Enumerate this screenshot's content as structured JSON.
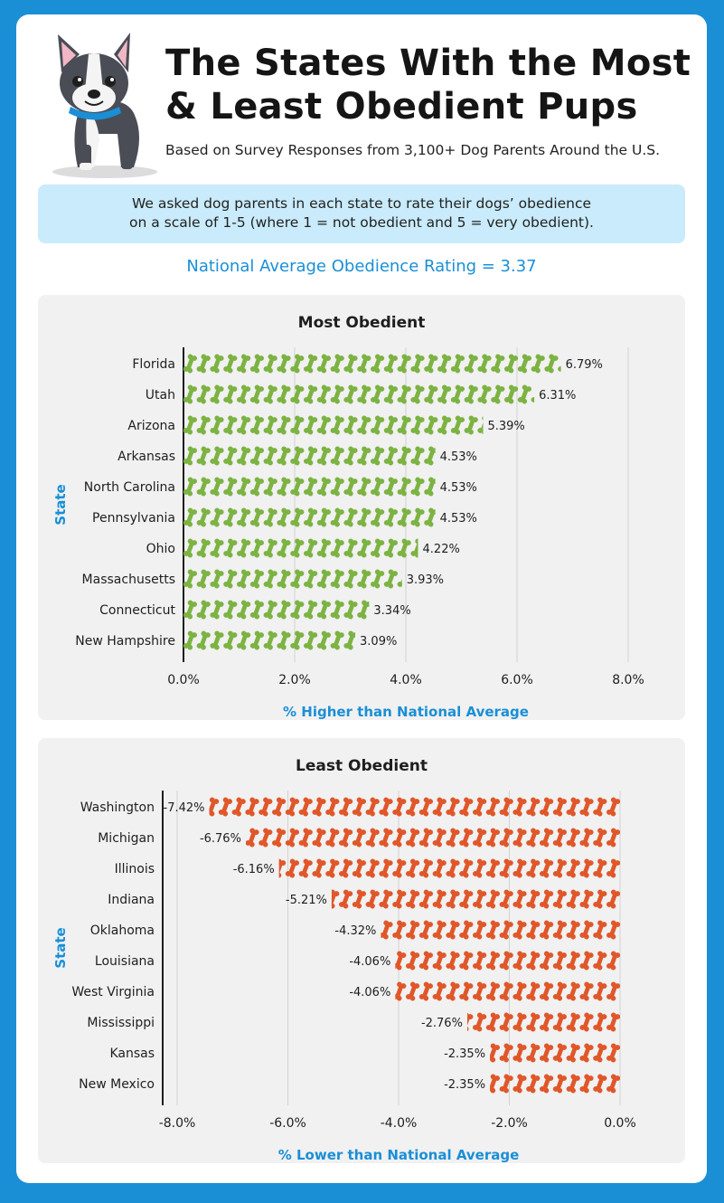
{
  "header": {
    "title_line1": "The States With the Most",
    "title_line2": "& Least Obedient Pups",
    "subtitle": "Based on Survey Responses from 3,100+ Dog Parents Around the U.S."
  },
  "note": {
    "line1": "We asked dog parents in each state to rate their dogs’ obedience",
    "line2": "on a scale of 1-5 (where 1 = not obedient and 5 = very obedient)."
  },
  "national_average": "National Average Obedience Rating = 3.37",
  "colors": {
    "accent": "#1a8fd6",
    "most_bone": "#7cb342",
    "least_bone": "#e0572a",
    "note_bg": "#c9ebfb",
    "panel_bg": "#f1f1f1"
  },
  "chart_data": [
    {
      "type": "bar",
      "orientation": "horizontal",
      "title": "Most Obedient",
      "xlabel": "% Higher than National Average",
      "ylabel": "State",
      "xlim": [
        0,
        8
      ],
      "grid": true,
      "mark": "bone-icon",
      "categories": [
        "Florida",
        "Utah",
        "Arizona",
        "Arkansas",
        "North Carolina",
        "Pennsylvania",
        "Ohio",
        "Massachusetts",
        "Connecticut",
        "New Hampshire"
      ],
      "values": [
        6.79,
        6.31,
        5.39,
        4.53,
        4.53,
        4.53,
        4.22,
        3.93,
        3.34,
        3.09
      ],
      "labels": [
        "6.79%",
        "6.31%",
        "5.39%",
        "4.53%",
        "4.53%",
        "4.53%",
        "4.22%",
        "3.93%",
        "3.34%",
        "3.09%"
      ],
      "ticks": [
        "0.0%",
        "2.0%",
        "4.0%",
        "6.0%",
        "8.0%"
      ],
      "tick_values": [
        0,
        2,
        4,
        6,
        8
      ]
    },
    {
      "type": "bar",
      "orientation": "horizontal",
      "title": "Least Obedient",
      "xlabel": "% Lower than National Average",
      "ylabel": "State",
      "xlim": [
        -8,
        0
      ],
      "grid": true,
      "mark": "bone-icon",
      "categories": [
        "Washington",
        "Michigan",
        "Illinois",
        "Indiana",
        "Oklahoma",
        "Louisiana",
        "West Virginia",
        "Mississippi",
        "Kansas",
        "New Mexico"
      ],
      "values": [
        -7.42,
        -6.76,
        -6.16,
        -5.21,
        -4.32,
        -4.06,
        -4.06,
        -2.76,
        -2.35,
        -2.35
      ],
      "labels": [
        "-7.42%",
        "-6.76%",
        "-6.16%",
        "-5.21%",
        "-4.32%",
        "-4.06%",
        "-4.06%",
        "-2.76%",
        "-2.35%",
        "-2.35%"
      ],
      "ticks": [
        "-8.0%",
        "-6.0%",
        "-4.0%",
        "-2.0%",
        "0.0%"
      ],
      "tick_values": [
        -8,
        -6,
        -4,
        -2,
        0
      ]
    }
  ]
}
